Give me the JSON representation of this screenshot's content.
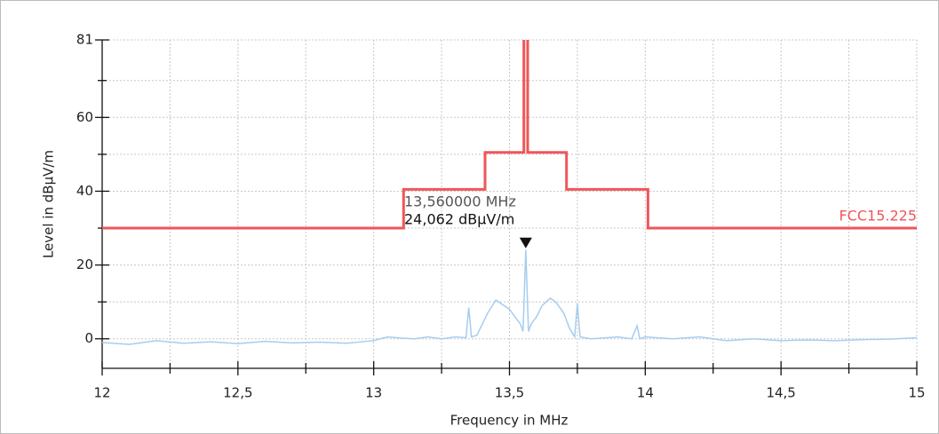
{
  "chart_data": {
    "type": "line",
    "xlabel": "Frequency in MHz",
    "ylabel": "Level in dBµV/m",
    "xlim": [
      12,
      15
    ],
    "ylim": [
      -8,
      81
    ],
    "xticks": [
      12,
      {
        "value": 12.5,
        "label": "12,5"
      },
      13,
      {
        "value": 13.5,
        "label": "13,5"
      },
      14,
      {
        "value": 14.5,
        "label": "14,5"
      },
      15
    ],
    "xminor": [
      12.25,
      12.75,
      13.25,
      13.75,
      14.25,
      14.75
    ],
    "yticks": [
      0,
      20,
      40,
      60,
      81
    ],
    "yminor": [
      10,
      30,
      50,
      70
    ],
    "grid": true,
    "series": [
      {
        "name": "FCC15.225",
        "color": "#f0555a",
        "x": [
          12,
          13.11,
          13.11,
          13.41,
          13.41,
          13.553,
          13.553,
          13.567,
          13.567,
          13.71,
          13.71,
          14.01,
          14.01,
          15
        ],
        "values": [
          30,
          30,
          40.5,
          40.5,
          50.5,
          50.5,
          124,
          124,
          50.5,
          50.5,
          40.5,
          40.5,
          30,
          30
        ]
      },
      {
        "color": "#a6cdf0",
        "x": [
          12.0,
          12.1,
          12.2,
          12.3,
          12.4,
          12.5,
          12.6,
          12.7,
          12.8,
          12.9,
          13.0,
          13.05,
          13.1,
          13.15,
          13.2,
          13.25,
          13.3,
          13.34,
          13.35,
          13.36,
          13.38,
          13.4,
          13.42,
          13.45,
          13.48,
          13.5,
          13.52,
          13.54,
          13.55,
          13.56,
          13.57,
          13.58,
          13.6,
          13.62,
          13.65,
          13.67,
          13.7,
          13.72,
          13.74,
          13.75,
          13.76,
          13.8,
          13.9,
          13.95,
          13.97,
          13.98,
          14.0,
          14.1,
          14.2,
          14.3,
          14.4,
          14.5,
          14.6,
          14.7,
          14.8,
          14.9,
          15.0
        ],
        "values": [
          -1,
          -1.5,
          -0.5,
          -1.2,
          -0.8,
          -1.3,
          -0.7,
          -1.1,
          -0.9,
          -1.2,
          -0.5,
          0.5,
          0.2,
          0,
          0.5,
          0,
          0.5,
          0.3,
          8.5,
          0.5,
          1,
          4,
          7,
          10.5,
          9,
          8,
          6,
          4,
          2,
          24.062,
          2,
          4,
          6,
          9,
          11,
          10,
          7,
          3,
          0.5,
          9.5,
          0.5,
          0,
          0.5,
          0,
          3.5,
          0,
          0.5,
          0,
          0.5,
          -0.5,
          0,
          -0.5,
          -0.3,
          -0.5,
          -0.2,
          -0.1,
          0.3
        ]
      }
    ],
    "marker": {
      "x": 13.56,
      "value": 24.062,
      "x_label": "13,560000 MHz",
      "value_label": "24,062 dBµV/m"
    }
  }
}
